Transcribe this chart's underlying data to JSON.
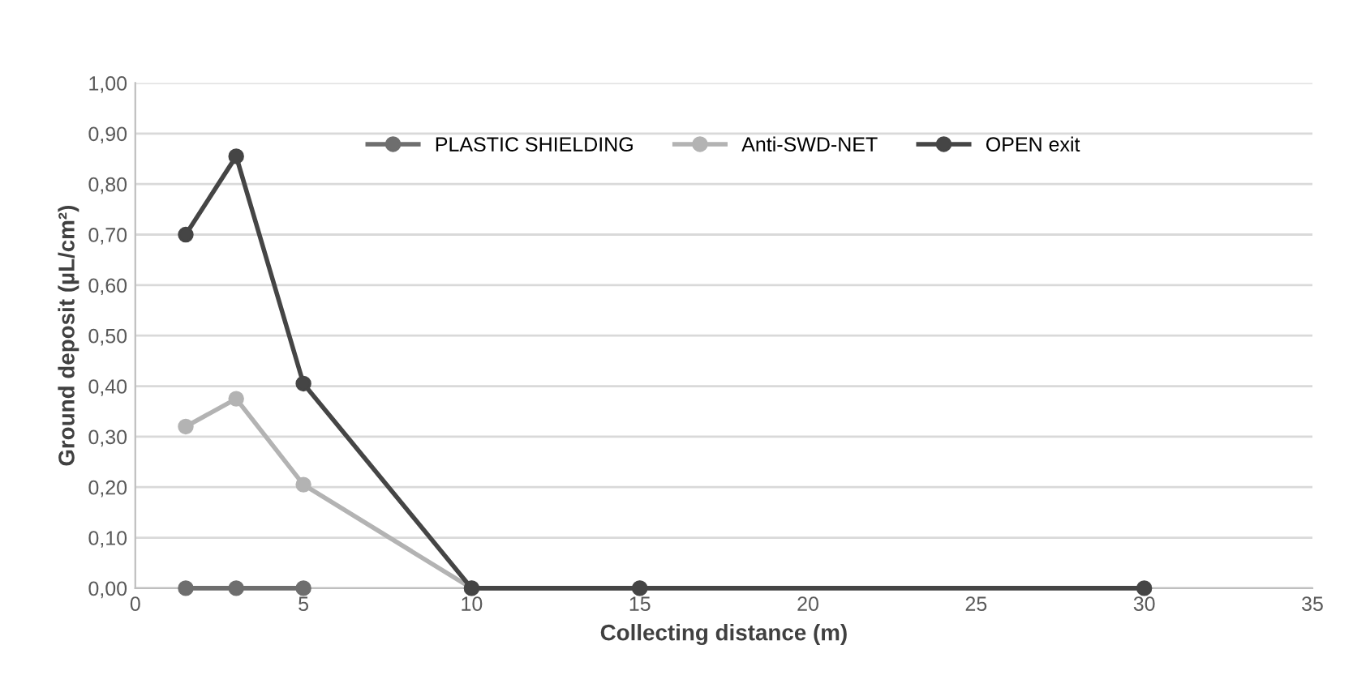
{
  "chart_data": {
    "type": "line",
    "xlabel": "Collecting distance (m)",
    "ylabel": "Ground deposit (µL/cm²)",
    "series": [
      {
        "name": "PLASTIC SHIELDING",
        "color": "#6e6e6e",
        "x": [
          1.5,
          3,
          5
        ],
        "values": [
          0,
          0,
          0
        ]
      },
      {
        "name": "Anti-SWD-NET",
        "color": "#b3b3b3",
        "x": [
          1.5,
          3,
          5,
          10,
          15
        ],
        "values": [
          0.32,
          0.375,
          0.205,
          0,
          0
        ]
      },
      {
        "name": "OPEN exit",
        "color": "#454545",
        "x": [
          1.5,
          3,
          5,
          10,
          15,
          30
        ],
        "values": [
          0.7,
          0.855,
          0.405,
          0,
          0,
          0
        ]
      }
    ],
    "xlim": [
      0,
      35
    ],
    "xticks": [
      0,
      5,
      10,
      15,
      20,
      25,
      30,
      35
    ],
    "ylim": [
      0,
      1
    ],
    "yticks": [
      {
        "value": 0,
        "label": "0,00"
      },
      {
        "value": 0.1,
        "label": "0,10"
      },
      {
        "value": 0.2,
        "label": "0,20"
      },
      {
        "value": 0.3,
        "label": "0,30"
      },
      {
        "value": 0.4,
        "label": "0,40"
      },
      {
        "value": 0.5,
        "label": "0,50"
      },
      {
        "value": 0.6,
        "label": "0,60"
      },
      {
        "value": 0.7,
        "label": "0,70"
      },
      {
        "value": 0.8,
        "label": "0,80"
      },
      {
        "value": 0.9,
        "label": "0,90"
      },
      {
        "value": 1.0,
        "label": "1,00"
      }
    ],
    "grid": "y",
    "legend": "top",
    "marker": "circle",
    "line_style": "solid"
  }
}
